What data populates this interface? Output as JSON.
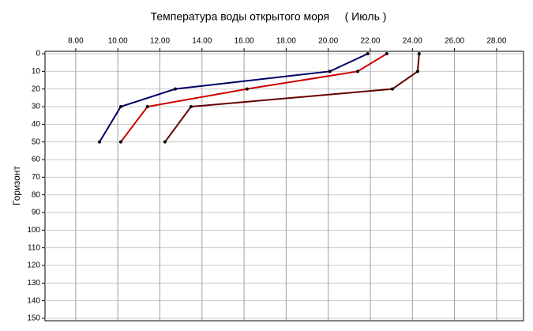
{
  "chart_data": {
    "type": "line",
    "title": "Температура воды открытого моря     ( Июль )",
    "ylabel": "Горизонт",
    "y": [
      0,
      10,
      20,
      30,
      50
    ],
    "series": [
      {
        "color": "#000066",
        "x": [
          21.88,
          20.08,
          12.73,
          10.14,
          9.13
        ]
      },
      {
        "color": "#cc0000",
        "x": [
          22.78,
          21.4,
          16.14,
          11.41,
          10.14
        ]
      },
      {
        "color": "#660000",
        "x": [
          24.32,
          24.25,
          23.05,
          13.48,
          12.24
        ]
      }
    ],
    "xlim": [
      6.54,
      29.28
    ],
    "xticks": [
      {
        "value": 8,
        "label": "8.00"
      },
      {
        "value": 10,
        "label": "10.00"
      },
      {
        "value": 12,
        "label": "12.00"
      },
      {
        "value": 14,
        "label": "14.00"
      },
      {
        "value": 16,
        "label": "16.00"
      },
      {
        "value": 18,
        "label": "18.00"
      },
      {
        "value": 20,
        "label": "20.00"
      },
      {
        "value": 22,
        "label": "22.00"
      },
      {
        "value": 24,
        "label": "24.00"
      },
      {
        "value": 26,
        "label": "26.00"
      },
      {
        "value": 28,
        "label": "28.00"
      }
    ],
    "ylim": [
      0,
      150
    ],
    "yticks": [
      0,
      10,
      20,
      30,
      40,
      50,
      60,
      70,
      80,
      90,
      100,
      110,
      120,
      130,
      140,
      150
    ],
    "y_inverted": true,
    "grid": true
  }
}
